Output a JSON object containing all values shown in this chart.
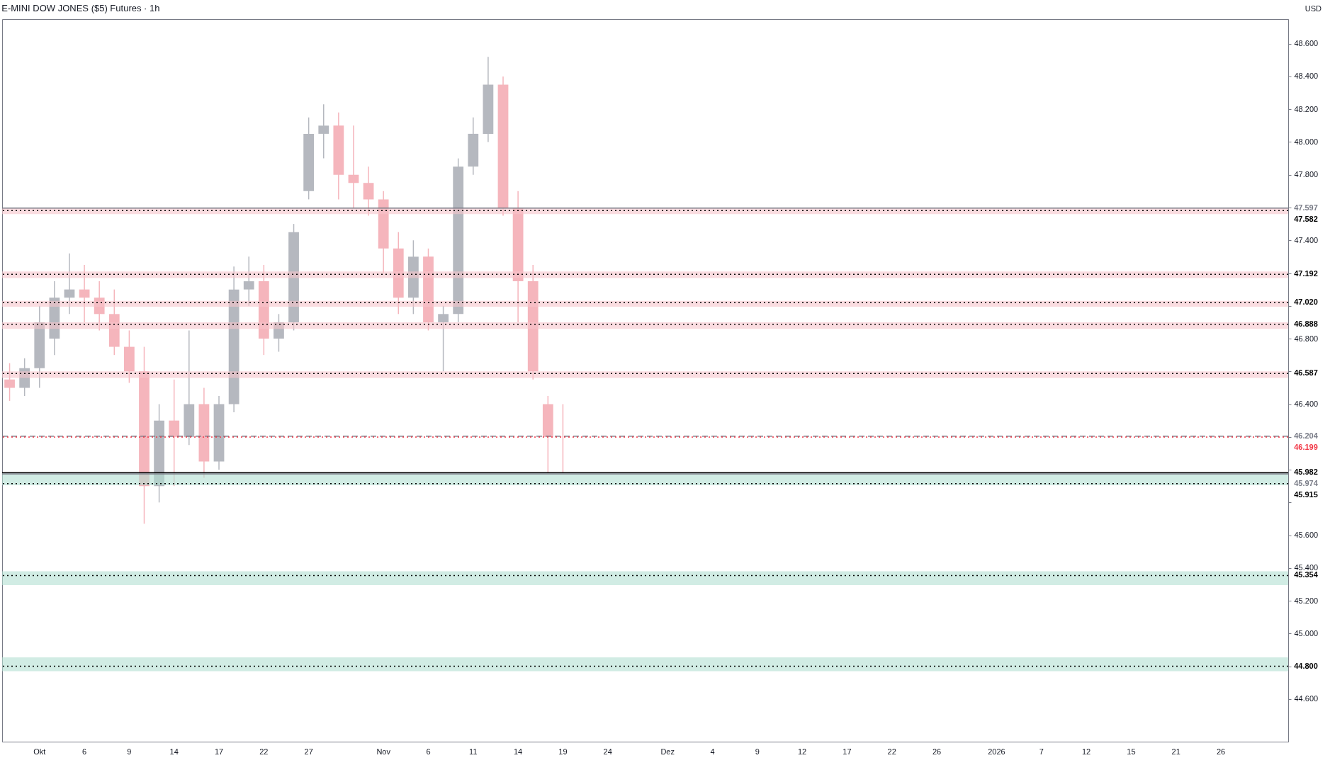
{
  "chart_data": {
    "type": "candlestick",
    "title": "E-MINI DOW JONES ($5) Futures · 1h",
    "annotations": [
      "USD"
    ],
    "categories": [
      null,
      null,
      "Okt",
      null,
      null,
      "6",
      null,
      null,
      "9",
      null,
      null,
      "14",
      null,
      null,
      "17",
      null,
      null,
      "22",
      null,
      null,
      "27",
      null,
      null,
      null,
      null,
      "Nov",
      null,
      null,
      "6",
      null,
      null,
      "11",
      null,
      null,
      "14",
      null,
      null,
      "19",
      null,
      null,
      "24",
      null,
      null,
      null,
      "Dez",
      null,
      null,
      "4",
      null,
      null,
      "9",
      null,
      null,
      "12",
      null,
      null,
      "17",
      null,
      null,
      "22",
      null,
      null,
      "26",
      null,
      null,
      null,
      "2026",
      null,
      null,
      "7",
      null,
      null,
      "12",
      null,
      null,
      "15",
      null,
      null,
      "21",
      null,
      null,
      "26",
      null,
      null,
      null,
      null
    ],
    "ohlc": [
      [
        46550,
        46650,
        46420,
        46500
      ],
      [
        46500,
        46680,
        46450,
        46620
      ],
      [
        46620,
        47000,
        46500,
        46900
      ],
      [
        46800,
        47150,
        46700,
        47050
      ],
      [
        47050,
        47320,
        46950,
        47100
      ],
      [
        47100,
        47250,
        46900,
        47050
      ],
      [
        47050,
        47150,
        46850,
        46950
      ],
      [
        46950,
        47100,
        46700,
        46750
      ],
      [
        46750,
        46850,
        46530,
        46600
      ],
      [
        46600,
        46750,
        45670,
        45900
      ],
      [
        45900,
        46400,
        45800,
        46300
      ],
      [
        46300,
        46550,
        45900,
        46200
      ],
      [
        46200,
        46850,
        46150,
        46400
      ],
      [
        46400,
        46500,
        45950,
        46050
      ],
      [
        46050,
        46450,
        46000,
        46400
      ],
      [
        46400,
        47240,
        46350,
        47100
      ],
      [
        47100,
        47300,
        47000,
        47150
      ],
      [
        47150,
        47250,
        46700,
        46800
      ],
      [
        46800,
        46950,
        46720,
        46900
      ],
      [
        46900,
        47500,
        46850,
        47450
      ],
      [
        47700,
        48150,
        47650,
        48050
      ],
      [
        48050,
        48230,
        47900,
        48100
      ],
      [
        48100,
        48180,
        47650,
        47800
      ],
      [
        47800,
        48100,
        47600,
        47750
      ],
      [
        47750,
        47850,
        47550,
        47650
      ],
      [
        47650,
        47700,
        47200,
        47350
      ],
      [
        47350,
        47450,
        46950,
        47050
      ],
      [
        47050,
        47400,
        46950,
        47300
      ],
      [
        47300,
        47350,
        46850,
        46900
      ],
      [
        46900,
        47000,
        46600,
        46950
      ],
      [
        46950,
        47900,
        46900,
        47850
      ],
      [
        47850,
        48150,
        47800,
        48050
      ],
      [
        48050,
        48520,
        48000,
        48350
      ],
      [
        48350,
        48400,
        47550,
        47600
      ],
      [
        47600,
        47700,
        46900,
        47150
      ],
      [
        47150,
        47250,
        46550,
        46600
      ],
      [
        46400,
        46450,
        45980,
        46200
      ],
      [
        46200,
        46400,
        45980,
        46199
      ],
      null,
      null,
      null,
      null,
      null,
      null,
      null,
      null,
      null,
      null,
      null,
      null,
      null,
      null,
      null,
      null,
      null,
      null,
      null,
      null,
      null,
      null,
      null,
      null,
      null,
      null,
      null,
      null,
      null,
      null,
      null,
      null,
      null,
      null,
      null,
      null,
      null,
      null,
      null,
      null,
      null,
      null,
      null,
      null,
      null,
      null,
      null,
      null
    ],
    "ylim": [
      44340,
      48750
    ],
    "yticks": [
      {
        "value": 44600,
        "label": "44.600"
      },
      {
        "value": 44800,
        "label": null
      },
      {
        "value": 45000,
        "label": "45.000"
      },
      {
        "value": 45200,
        "label": "45.200"
      },
      {
        "value": 45400,
        "label": "45.400"
      },
      {
        "value": 45600,
        "label": "45.600"
      },
      {
        "value": 45800,
        "label": null
      },
      {
        "value": 46000,
        "label": null
      },
      {
        "value": 46200,
        "label": null
      },
      {
        "value": 46400,
        "label": "46.400"
      },
      {
        "value": 46600,
        "label": null
      },
      {
        "value": 46800,
        "label": "46.800"
      },
      {
        "value": 47000,
        "label": null
      },
      {
        "value": 47200,
        "label": null
      },
      {
        "value": 47400,
        "label": "47.400"
      },
      {
        "value": 47600,
        "label": null
      },
      {
        "value": 47800,
        "label": "47.800"
      },
      {
        "value": 48000,
        "label": "48.000"
      },
      {
        "value": 48200,
        "label": "48.200"
      },
      {
        "value": 48400,
        "label": "48.400"
      },
      {
        "value": 48600,
        "label": "48.600"
      }
    ],
    "ref_lines": [
      {
        "axis": "y",
        "value": 47597,
        "label": "47.597",
        "color": "#787b86",
        "line_style": "solid"
      },
      {
        "axis": "y",
        "value": 47582,
        "label": "47.582",
        "color": "#000000",
        "line_style": "dotted"
      },
      {
        "axis": "y",
        "value": 47192,
        "label": "47.192",
        "color": "#000000",
        "line_style": "dotted"
      },
      {
        "axis": "y",
        "value": 47020,
        "label": "47.020",
        "color": "#000000",
        "line_style": "dotted"
      },
      {
        "axis": "y",
        "value": 46888,
        "label": "46.888",
        "color": "#000000",
        "line_style": "dotted"
      },
      {
        "axis": "y",
        "value": 46587,
        "label": "46.587",
        "color": "#000000",
        "line_style": "dotted"
      },
      {
        "axis": "y",
        "value": 46204,
        "label": "46.204",
        "color": "#787b86",
        "line_style": "dashed"
      },
      {
        "axis": "y",
        "value": 46199,
        "label": "46.199",
        "color": "#f23645",
        "line_style": "dotted"
      },
      {
        "axis": "y",
        "value": 45982,
        "label": "45.982",
        "color": "#000000",
        "line_style": "solid"
      },
      {
        "axis": "y",
        "value": 45974,
        "label": "45.974",
        "color": "#787b86",
        "line_style": "solid"
      },
      {
        "axis": "y",
        "value": 45915,
        "label": "45.915",
        "color": "#000000",
        "line_style": "dotted"
      },
      {
        "axis": "y",
        "value": 45354,
        "label": "45.354",
        "color": "#000000",
        "line_style": "dotted"
      },
      {
        "axis": "y",
        "value": 44800,
        "label": "44.800",
        "color": "#000000",
        "line_style": "dotted"
      }
    ],
    "bands": [
      {
        "axis": "y",
        "from": 47560,
        "to": 47600,
        "color": "#f7c5cb"
      },
      {
        "axis": "y",
        "from": 47170,
        "to": 47210,
        "color": "#f7c5cb"
      },
      {
        "axis": "y",
        "from": 46995,
        "to": 47030,
        "color": "#f7c5cb"
      },
      {
        "axis": "y",
        "from": 46860,
        "to": 46900,
        "color": "#f7c5cb"
      },
      {
        "axis": "y",
        "from": 46560,
        "to": 46600,
        "color": "#f7c5cb"
      },
      {
        "axis": "y",
        "from": 45905,
        "to": 45980,
        "color": "#b2dfd2"
      },
      {
        "axis": "y",
        "from": 45295,
        "to": 45380,
        "color": "#b2dfd2"
      },
      {
        "axis": "y",
        "from": 44770,
        "to": 44855,
        "color": "#b2dfd2"
      }
    ],
    "grid": false
  }
}
